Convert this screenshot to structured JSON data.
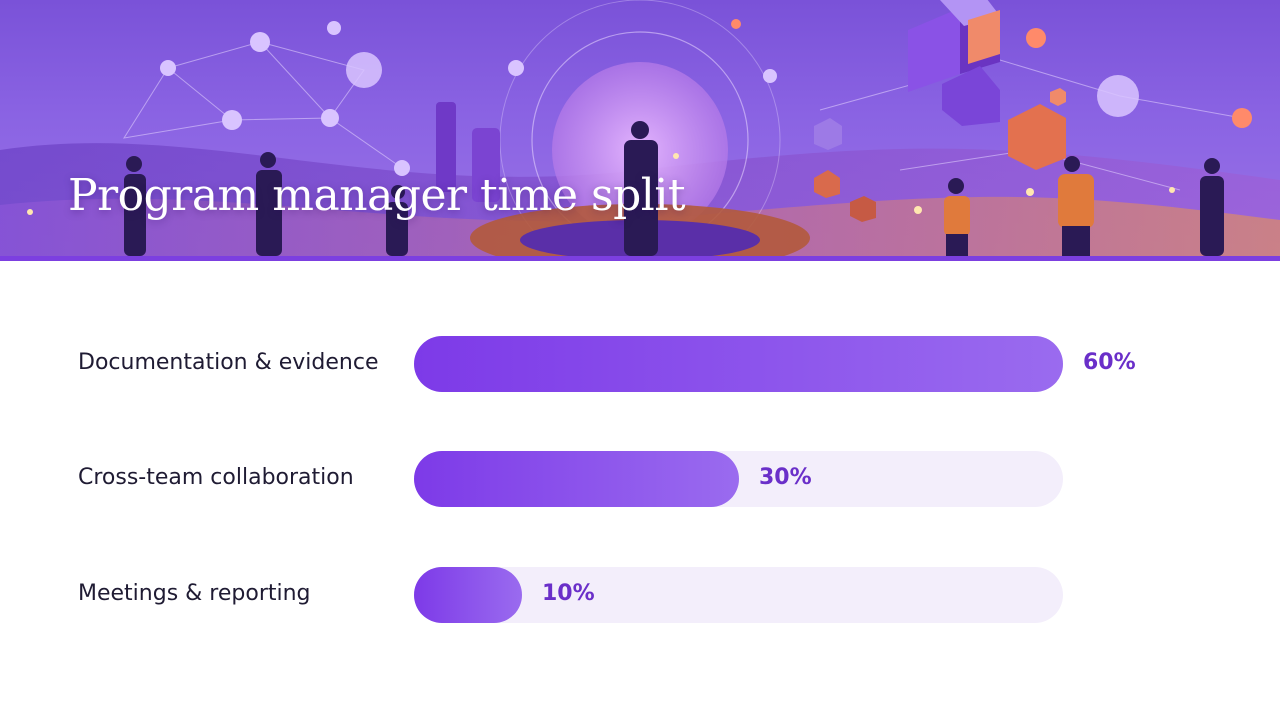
{
  "slide": {
    "title": "Program manager time split"
  },
  "colors": {
    "bar_start": "#7d3ae8",
    "bar_end": "#9a6bef",
    "track": "#f3eefb",
    "value_text": "#6a2fc9",
    "label_text": "#1f1b33",
    "banner_rule": "#7c3fe0"
  },
  "chart_data": {
    "type": "bar",
    "orientation": "horizontal",
    "title": "Program manager time split",
    "categories": [
      "Documentation & evidence",
      "Cross-team collaboration",
      "Meetings & reporting"
    ],
    "values": [
      60,
      30,
      10
    ],
    "value_labels": [
      "60%",
      "30%",
      "10%"
    ],
    "unit": "%",
    "xlim": [
      0,
      60
    ],
    "grid": false,
    "legend": "none"
  }
}
